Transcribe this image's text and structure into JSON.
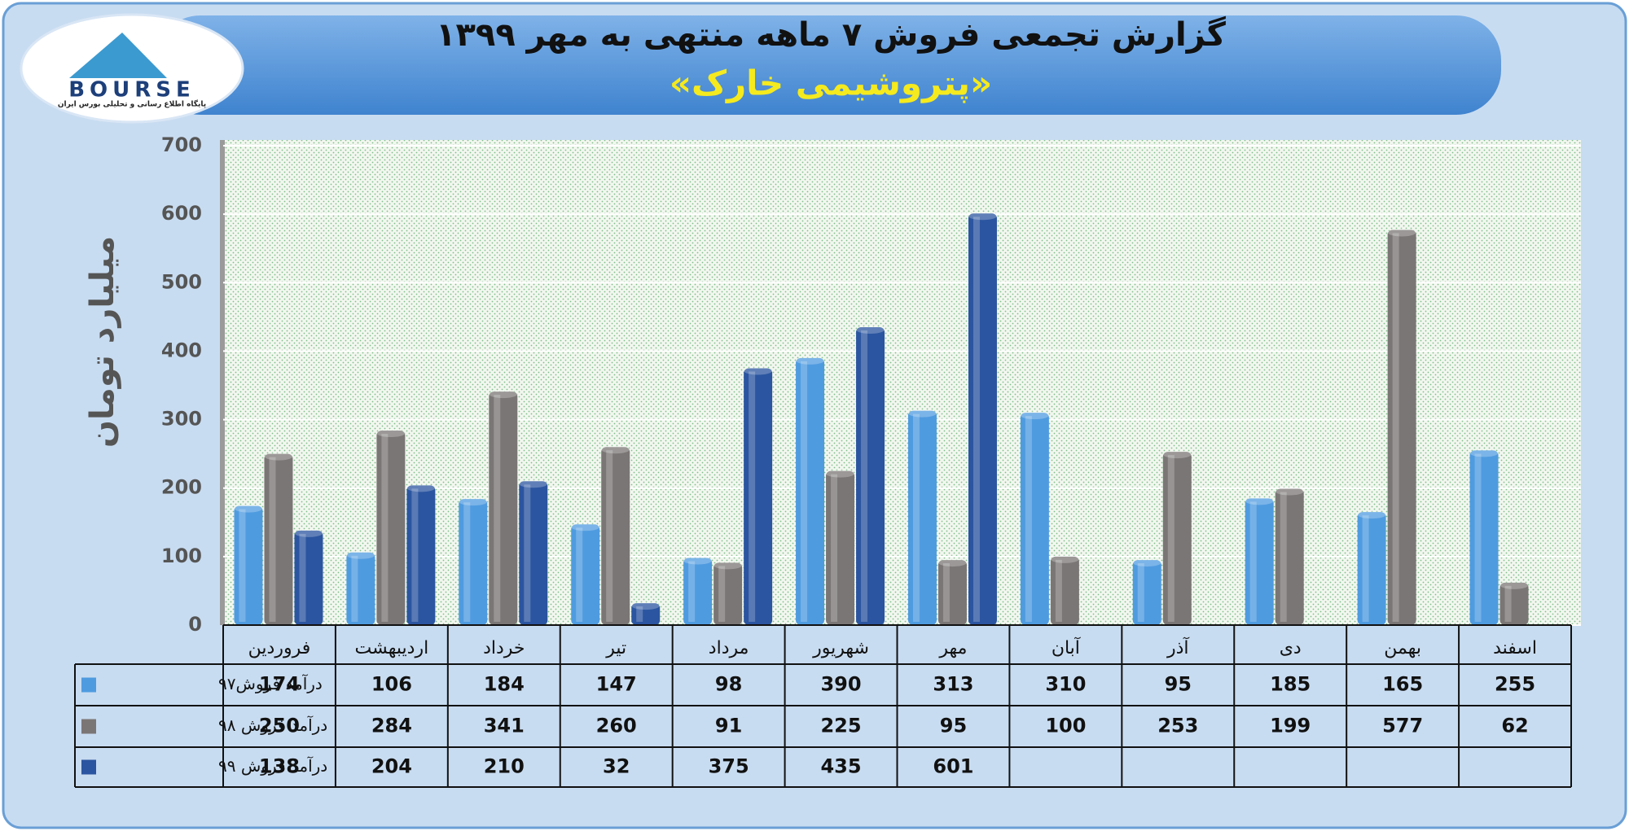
{
  "logo": {
    "name": "BOURSE",
    "tagline": "پایگاه اطلاع رسانی و تحلیلی بورس ایران"
  },
  "chart_data": {
    "type": "bar",
    "title": "گزارش تجمعی فروش ۷ ماهه منتهی به مهر ۱۳۹۹",
    "subtitle": "«پتروشیمی خارک»",
    "y_label": "میلیارد تومان",
    "categories": [
      "فروردین",
      "اردیبهشت",
      "خرداد",
      "تیر",
      "مرداد",
      "شهریور",
      "مهر",
      "آبان",
      "آذر",
      "دی",
      "بهمن",
      "اسفند"
    ],
    "series": [
      {
        "name": "درآمد فروش۹۷",
        "color": "#4f9be0",
        "values": [
          174,
          106,
          184,
          147,
          98,
          390,
          313,
          310,
          95,
          185,
          165,
          255
        ]
      },
      {
        "name": "درآمد فروش ۹۸",
        "color": "#7b7676",
        "values": [
          250,
          284,
          341,
          260,
          91,
          225,
          95,
          100,
          253,
          199,
          577,
          62
        ]
      },
      {
        "name": "درآمد فروش ۹۹",
        "color": "#2b55a0",
        "values": [
          138,
          204,
          210,
          32,
          375,
          435,
          601,
          null,
          null,
          null,
          null,
          null
        ]
      }
    ],
    "ylim": [
      0,
      700
    ],
    "yticks": [
      0,
      100,
      200,
      300,
      400,
      500,
      600,
      700
    ],
    "grid": true
  }
}
